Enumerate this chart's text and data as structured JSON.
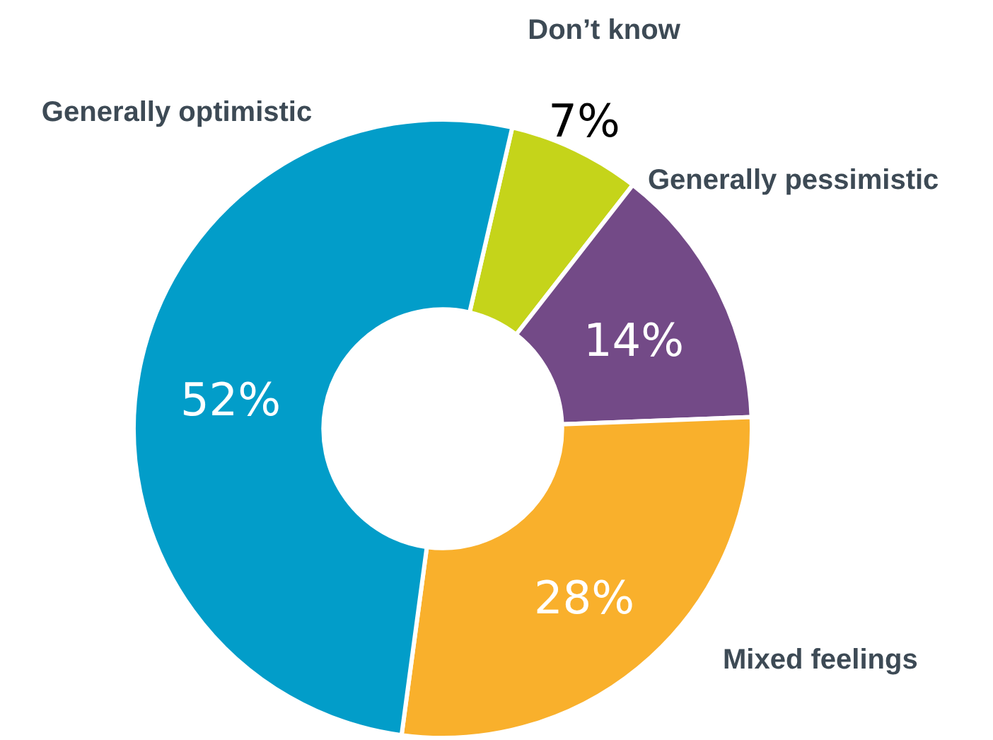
{
  "chart_data": {
    "type": "donut",
    "categories": [
      "Don’t know",
      "Generally pessimistic",
      "Mixed feelings",
      "Generally optimistic"
    ],
    "values": [
      7,
      14,
      28,
      52
    ],
    "value_labels": [
      "7%",
      "14%",
      "28%",
      "52%"
    ],
    "colors": [
      "#c5d41a",
      "#734a87",
      "#f9b02c",
      "#029dc9"
    ],
    "legend": false
  }
}
